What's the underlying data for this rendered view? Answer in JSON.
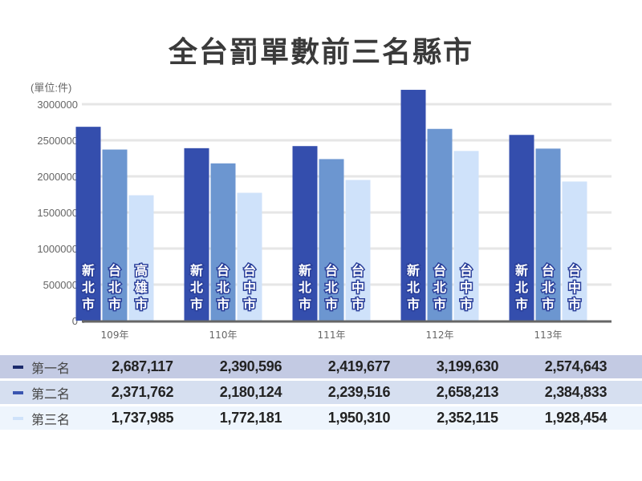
{
  "chart_data": {
    "type": "bar",
    "title": "全台罰單數前三名縣市",
    "ylabel": "(單位:件)",
    "ylim": [
      0,
      3000000
    ],
    "yticks": [
      0,
      500000,
      1000000,
      1500000,
      2000000,
      2500000,
      3000000
    ],
    "grid": true,
    "categories": [
      "109年",
      "110年",
      "111年",
      "112年",
      "113年"
    ],
    "series": [
      {
        "name": "第一名",
        "color": "#344EAD",
        "marker_color": "#1B2A6B",
        "values": [
          2687117,
          2390596,
          2419677,
          3199630,
          2574643
        ],
        "labels": [
          "新北市",
          "新北市",
          "新北市",
          "新北市",
          "新北市"
        ],
        "display": [
          "2,687,117",
          "2,390,596",
          "2,419,677",
          "3,199,630",
          "2,574,643"
        ]
      },
      {
        "name": "第二名",
        "color": "#6C96D0",
        "marker_color": "#3A55B0",
        "values": [
          2371762,
          2180124,
          2239516,
          2658213,
          2384833
        ],
        "labels": [
          "台北市",
          "台北市",
          "台北市",
          "台北市",
          "台北市"
        ],
        "display": [
          "2,371,762",
          "2,180,124",
          "2,239,516",
          "2,658,213",
          "2,384,833"
        ]
      },
      {
        "name": "第三名",
        "color": "#CFE2FA",
        "marker_color": "#CFE2FA",
        "values": [
          1737985,
          1772181,
          1950310,
          2352115,
          1928454
        ],
        "labels": [
          "高雄市",
          "台中市",
          "台中市",
          "台中市",
          "台中市"
        ],
        "display": [
          "1,737,985",
          "1,772,181",
          "1,950,310",
          "2,352,115",
          "1,928,454"
        ]
      }
    ],
    "table_row_colors": [
      "#C3CAE3",
      "#D6DFF0",
      "#EEF5FD"
    ]
  }
}
